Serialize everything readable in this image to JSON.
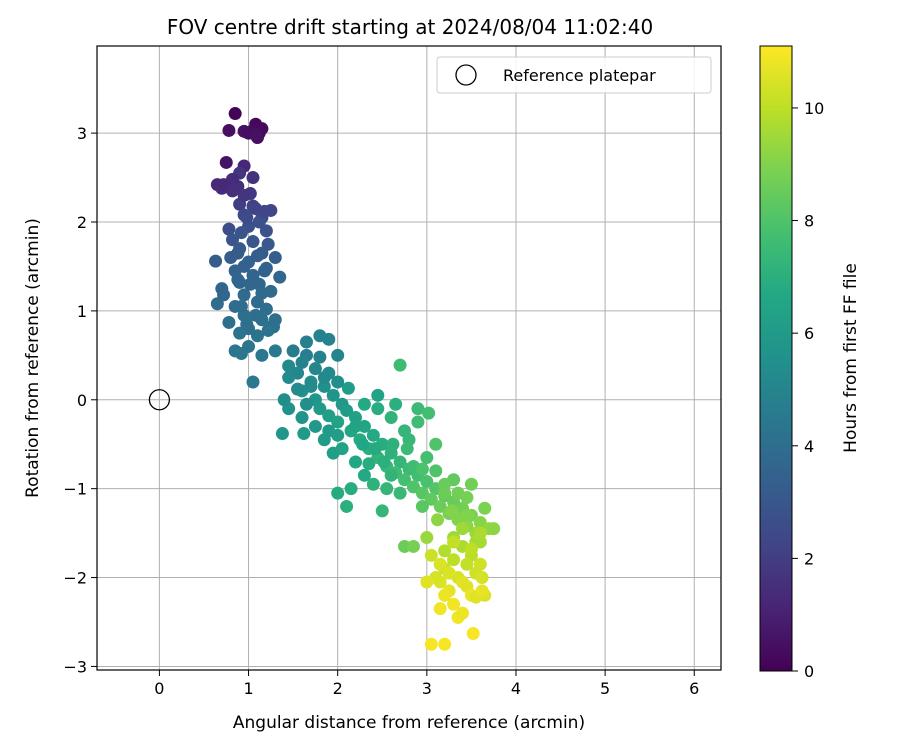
{
  "chart_data": {
    "type": "scatter",
    "title": "FOV centre drift starting at 2024/08/04 11:02:40",
    "xlabel": "Angular distance from reference (arcmin)",
    "ylabel": "Rotation from reference (arcmin)",
    "xlim": [
      -0.7,
      6.3
    ],
    "ylim": [
      -3.04,
      3.98
    ],
    "xticks": [
      0,
      1,
      2,
      3,
      4,
      5,
      6
    ],
    "yticks": [
      -3,
      -2,
      -1,
      0,
      1,
      2,
      3
    ],
    "xtick_labels": [
      "0",
      "1",
      "2",
      "3",
      "4",
      "5",
      "6"
    ],
    "ytick_labels": [
      "−3",
      "−2",
      "−1",
      "0",
      "1",
      "2",
      "3"
    ],
    "grid": true,
    "legend": {
      "position": "top-right",
      "entries": [
        "Reference platepar"
      ]
    },
    "reference_point": {
      "x": 0,
      "y": 0,
      "label": "Reference platepar"
    },
    "colorbar": {
      "label": "Hours from first FF file",
      "range": [
        0,
        11.1
      ],
      "ticks": [
        0,
        2,
        4,
        6,
        8,
        10
      ],
      "tick_labels": [
        "0",
        "2",
        "4",
        "6",
        "8",
        "10"
      ],
      "colormap": "viridis"
    },
    "series": [
      {
        "points": [
          [
            0.85,
            3.22,
            0.1
          ],
          [
            1.08,
            3.1,
            0.2
          ],
          [
            1.05,
            3.03,
            0.3
          ],
          [
            1.12,
            3.0,
            0.35
          ],
          [
            1.1,
            2.95,
            0.4
          ],
          [
            0.78,
            3.03,
            0.45
          ],
          [
            0.95,
            3.02,
            0.5
          ],
          [
            1.15,
            3.05,
            0.3
          ],
          [
            0.75,
            2.67,
            0.6
          ],
          [
            0.95,
            2.63,
            1.2
          ],
          [
            0.65,
            2.42,
            1.3
          ],
          [
            0.7,
            2.38,
            1.4
          ],
          [
            0.88,
            2.4,
            1.5
          ],
          [
            1.05,
            2.5,
            1.6
          ],
          [
            0.9,
            2.55,
            1.7
          ],
          [
            1.02,
            2.32,
            1.8
          ],
          [
            0.82,
            2.35,
            1.5
          ],
          [
            0.9,
            2.2,
            2.0
          ],
          [
            1.08,
            2.15,
            2.2
          ],
          [
            1.25,
            2.13,
            2.3
          ],
          [
            0.95,
            2.08,
            2.4
          ],
          [
            1.15,
            2.05,
            2.5
          ],
          [
            0.78,
            1.92,
            2.6
          ],
          [
            1.0,
            1.95,
            2.7
          ],
          [
            1.2,
            1.9,
            2.8
          ],
          [
            0.82,
            1.8,
            2.9
          ],
          [
            1.05,
            1.78,
            3.0
          ],
          [
            0.9,
            1.7,
            3.1
          ],
          [
            1.15,
            1.65,
            3.2
          ],
          [
            0.8,
            1.6,
            3.3
          ],
          [
            0.63,
            1.56,
            3.2
          ],
          [
            1.3,
            1.6,
            3.3
          ],
          [
            1.0,
            1.55,
            3.4
          ],
          [
            1.2,
            1.48,
            3.5
          ],
          [
            0.85,
            1.45,
            3.5
          ],
          [
            1.05,
            1.4,
            3.6
          ],
          [
            1.35,
            1.38,
            3.7
          ],
          [
            0.9,
            1.32,
            3.6
          ],
          [
            1.12,
            1.3,
            3.7
          ],
          [
            0.7,
            1.25,
            3.7
          ],
          [
            1.25,
            1.22,
            3.8
          ],
          [
            0.95,
            1.18,
            3.8
          ],
          [
            0.65,
            1.08,
            3.9
          ],
          [
            1.1,
            1.1,
            3.9
          ],
          [
            0.85,
            1.05,
            3.9
          ],
          [
            1.2,
            1.02,
            4.0
          ],
          [
            0.95,
            0.95,
            4.0
          ],
          [
            1.15,
            0.9,
            4.1
          ],
          [
            0.78,
            0.87,
            4.1
          ],
          [
            1.0,
            0.8,
            4.1
          ],
          [
            1.25,
            0.82,
            4.2
          ],
          [
            0.9,
            0.75,
            4.2
          ],
          [
            1.1,
            0.72,
            4.2
          ],
          [
            1.28,
            0.82,
            4.1
          ],
          [
            1.0,
            0.6,
            4.3
          ],
          [
            0.85,
            0.55,
            4.3
          ],
          [
            1.15,
            0.5,
            4.4
          ],
          [
            0.92,
            0.52,
            4.4
          ],
          [
            1.3,
            0.55,
            4.5
          ],
          [
            1.05,
            0.2,
            4.5
          ],
          [
            1.5,
            0.55,
            4.6
          ],
          [
            1.65,
            0.5,
            4.7
          ],
          [
            1.8,
            0.48,
            4.8
          ],
          [
            1.6,
            0.42,
            4.9
          ],
          [
            1.75,
            0.35,
            5.0
          ],
          [
            1.55,
            0.3,
            5.1
          ],
          [
            1.9,
            0.3,
            5.2
          ],
          [
            1.45,
            0.25,
            5.3
          ],
          [
            1.7,
            0.2,
            5.4
          ],
          [
            1.85,
            0.15,
            5.5
          ],
          [
            1.6,
            0.1,
            5.6
          ],
          [
            1.95,
            0.05,
            5.7
          ],
          [
            1.75,
            0.0,
            5.8
          ],
          [
            2.05,
            -0.05,
            5.9
          ],
          [
            1.8,
            -0.1,
            6.0
          ],
          [
            2.1,
            -0.12,
            6.1
          ],
          [
            1.9,
            -0.18,
            6.2
          ],
          [
            2.2,
            -0.2,
            6.3
          ],
          [
            2.0,
            -0.25,
            6.4
          ],
          [
            2.3,
            -0.3,
            6.5
          ],
          [
            2.15,
            -0.35,
            6.6
          ],
          [
            2.4,
            -0.4,
            6.7
          ],
          [
            2.25,
            -0.45,
            6.8
          ],
          [
            2.5,
            -0.5,
            6.9
          ],
          [
            2.35,
            -0.55,
            7.0
          ],
          [
            2.6,
            -0.6,
            7.1
          ],
          [
            2.45,
            -0.65,
            7.2
          ],
          [
            2.7,
            -0.7,
            7.3
          ],
          [
            2.55,
            -0.75,
            7.4
          ],
          [
            2.8,
            -0.78,
            7.5
          ],
          [
            2.65,
            -0.82,
            7.6
          ],
          [
            2.9,
            -0.85,
            7.7
          ],
          [
            2.75,
            -0.9,
            7.8
          ],
          [
            3.0,
            -0.92,
            7.9
          ],
          [
            2.85,
            -0.98,
            8.0
          ],
          [
            3.1,
            -1.0,
            8.1
          ],
          [
            2.95,
            -1.05,
            8.2
          ],
          [
            3.2,
            -1.08,
            8.3
          ],
          [
            3.05,
            -1.12,
            8.4
          ],
          [
            3.3,
            -1.15,
            8.5
          ],
          [
            3.15,
            -1.2,
            8.6
          ],
          [
            3.4,
            -1.22,
            8.7
          ],
          [
            3.25,
            -1.28,
            8.8
          ],
          [
            3.5,
            -1.3,
            8.9
          ],
          [
            3.35,
            -1.35,
            9.0
          ],
          [
            3.6,
            -1.38,
            9.1
          ],
          [
            3.45,
            -1.42,
            9.2
          ],
          [
            3.7,
            -1.45,
            9.3
          ],
          [
            3.55,
            -1.5,
            9.4
          ],
          [
            3.3,
            -1.55,
            9.5
          ],
          [
            3.6,
            -1.6,
            9.6
          ],
          [
            3.4,
            -1.65,
            9.7
          ],
          [
            3.2,
            -1.7,
            9.8
          ],
          [
            3.5,
            -1.75,
            9.9
          ],
          [
            3.3,
            -1.8,
            10.0
          ],
          [
            3.45,
            -1.85,
            10.1
          ],
          [
            3.2,
            -1.9,
            10.2
          ],
          [
            3.55,
            -1.95,
            10.3
          ],
          [
            3.35,
            -2.0,
            10.4
          ],
          [
            3.15,
            -2.05,
            10.5
          ],
          [
            3.45,
            -2.1,
            10.6
          ],
          [
            3.25,
            -2.15,
            10.7
          ],
          [
            3.5,
            -2.2,
            10.8
          ],
          [
            3.3,
            -2.3,
            10.9
          ],
          [
            3.05,
            -2.75,
            11.0
          ],
          [
            3.2,
            -2.75,
            11.0
          ],
          [
            3.52,
            -2.63,
            11.0
          ],
          [
            3.35,
            -2.45,
            10.9
          ],
          [
            3.65,
            -2.2,
            10.5
          ],
          [
            3.1,
            -2.0,
            10.4
          ],
          [
            2.7,
            0.39,
            7.6
          ],
          [
            1.65,
            0.65,
            4.8
          ],
          [
            1.8,
            0.72,
            4.9
          ],
          [
            1.9,
            0.68,
            4.9
          ],
          [
            2.0,
            0.5,
            5.0
          ],
          [
            1.3,
            0.9,
            4.1
          ],
          [
            1.38,
            -0.38,
            5.8
          ],
          [
            1.45,
            -0.1,
            5.6
          ],
          [
            1.62,
            -0.38,
            6.0
          ],
          [
            1.85,
            -0.45,
            6.1
          ],
          [
            1.95,
            -0.6,
            6.2
          ],
          [
            2.05,
            -0.55,
            6.4
          ],
          [
            2.2,
            -0.7,
            6.6
          ],
          [
            2.3,
            -0.85,
            6.7
          ],
          [
            2.15,
            -1.0,
            6.9
          ],
          [
            2.0,
            -1.05,
            6.8
          ],
          [
            2.1,
            -1.2,
            7.0
          ],
          [
            2.5,
            -1.25,
            7.3
          ],
          [
            2.7,
            -1.05,
            7.4
          ],
          [
            2.95,
            -1.2,
            8.2
          ],
          [
            2.75,
            -1.65,
            8.6
          ],
          [
            2.85,
            -1.65,
            8.8
          ],
          [
            3.0,
            -1.55,
            9.4
          ],
          [
            3.45,
            -1.3,
            9.0
          ],
          [
            3.75,
            -1.45,
            9.2
          ],
          [
            3.65,
            -1.22,
            8.9
          ],
          [
            3.55,
            -1.6,
            9.6
          ],
          [
            3.3,
            -1.6,
            10.1
          ],
          [
            3.05,
            -1.75,
            10.2
          ],
          [
            3.15,
            -2.35,
            10.9
          ],
          [
            3.4,
            -2.4,
            10.8
          ],
          [
            3.55,
            -2.22,
            10.6
          ],
          [
            3.62,
            -2.15,
            10.7
          ],
          [
            2.8,
            -0.45,
            7.4
          ],
          [
            2.9,
            -0.1,
            7.5
          ],
          [
            3.02,
            -0.15,
            7.7
          ],
          [
            2.6,
            -0.2,
            7.2
          ],
          [
            2.45,
            -0.1,
            6.9
          ],
          [
            2.3,
            -0.05,
            6.7
          ],
          [
            2.12,
            0.13,
            6.1
          ],
          [
            2.45,
            0.05,
            6.4
          ],
          [
            2.65,
            -0.05,
            7.0
          ],
          [
            2.9,
            -0.25,
            7.6
          ],
          [
            2.75,
            -0.35,
            7.3
          ],
          [
            3.1,
            -0.5,
            8.0
          ],
          [
            3.3,
            -0.9,
            8.4
          ],
          [
            3.5,
            -0.95,
            8.7
          ],
          [
            3.2,
            -0.95,
            8.5
          ],
          [
            2.55,
            -1.0,
            7.3
          ],
          [
            2.4,
            -0.95,
            7.1
          ],
          [
            2.35,
            -0.72,
            6.9
          ],
          [
            2.6,
            -0.85,
            7.2
          ],
          [
            2.85,
            -0.75,
            7.6
          ],
          [
            3.0,
            -0.65,
            7.8
          ],
          [
            1.45,
            0.38,
            5.2
          ],
          [
            1.55,
            0.12,
            5.3
          ],
          [
            1.4,
            0.0,
            5.4
          ],
          [
            1.6,
            -0.2,
            5.7
          ],
          [
            1.75,
            -0.3,
            5.9
          ],
          [
            1.9,
            -0.35,
            6.0
          ],
          [
            2.0,
            -0.4,
            6.2
          ],
          [
            1.65,
            -0.05,
            5.5
          ],
          [
            1.7,
            0.15,
            5.3
          ],
          [
            1.85,
            0.25,
            5.2
          ],
          [
            2.0,
            0.2,
            5.4
          ],
          [
            2.2,
            -0.3,
            6.4
          ],
          [
            2.28,
            -0.5,
            6.6
          ],
          [
            2.42,
            -0.55,
            6.8
          ],
          [
            2.52,
            -0.7,
            7.0
          ],
          [
            2.62,
            -0.5,
            7.1
          ],
          [
            2.78,
            -0.55,
            7.5
          ],
          [
            2.95,
            -0.78,
            7.9
          ],
          [
            3.1,
            -0.8,
            8.0
          ],
          [
            3.2,
            -1.05,
            8.6
          ],
          [
            3.35,
            -1.05,
            8.7
          ],
          [
            3.45,
            -1.1,
            8.8
          ],
          [
            3.28,
            -1.25,
            9.0
          ],
          [
            3.12,
            -1.35,
            9.2
          ],
          [
            3.4,
            -1.45,
            9.5
          ],
          [
            3.6,
            -1.5,
            9.7
          ],
          [
            3.5,
            -1.68,
            10.0
          ],
          [
            3.6,
            -1.85,
            10.3
          ],
          [
            3.25,
            -1.95,
            10.5
          ],
          [
            3.4,
            -2.05,
            10.6
          ],
          [
            3.2,
            -2.2,
            10.8
          ],
          [
            3.62,
            -2.0,
            10.4
          ],
          [
            3.0,
            -2.05,
            10.6
          ],
          [
            3.15,
            -1.85,
            10.5
          ],
          [
            0.72,
            1.18,
            3.7
          ],
          [
            0.92,
            1.05,
            3.9
          ],
          [
            1.08,
            0.95,
            4.0
          ],
          [
            1.22,
            0.78,
            4.2
          ],
          [
            0.98,
            0.85,
            4.1
          ],
          [
            1.15,
            1.2,
            3.8
          ],
          [
            1.02,
            1.3,
            3.7
          ],
          [
            0.88,
            1.35,
            3.6
          ],
          [
            1.18,
            1.45,
            3.5
          ],
          [
            0.95,
            1.5,
            3.4
          ],
          [
            1.1,
            1.62,
            3.3
          ],
          [
            0.88,
            1.65,
            3.2
          ],
          [
            1.22,
            1.75,
            3.1
          ],
          [
            0.92,
            1.88,
            2.9
          ],
          [
            1.12,
            2.0,
            2.7
          ],
          [
            0.98,
            2.05,
            2.5
          ],
          [
            1.18,
            2.12,
            2.3
          ],
          [
            1.05,
            2.18,
            2.2
          ],
          [
            0.82,
            2.48,
            1.4
          ],
          [
            0.72,
            2.42,
            1.3
          ],
          [
            0.95,
            2.3,
            1.7
          ],
          [
            1.0,
            3.0,
            0.4
          ],
          [
            1.12,
            3.05,
            0.3
          ],
          [
            1.08,
            2.98,
            0.5
          ]
        ]
      }
    ]
  }
}
